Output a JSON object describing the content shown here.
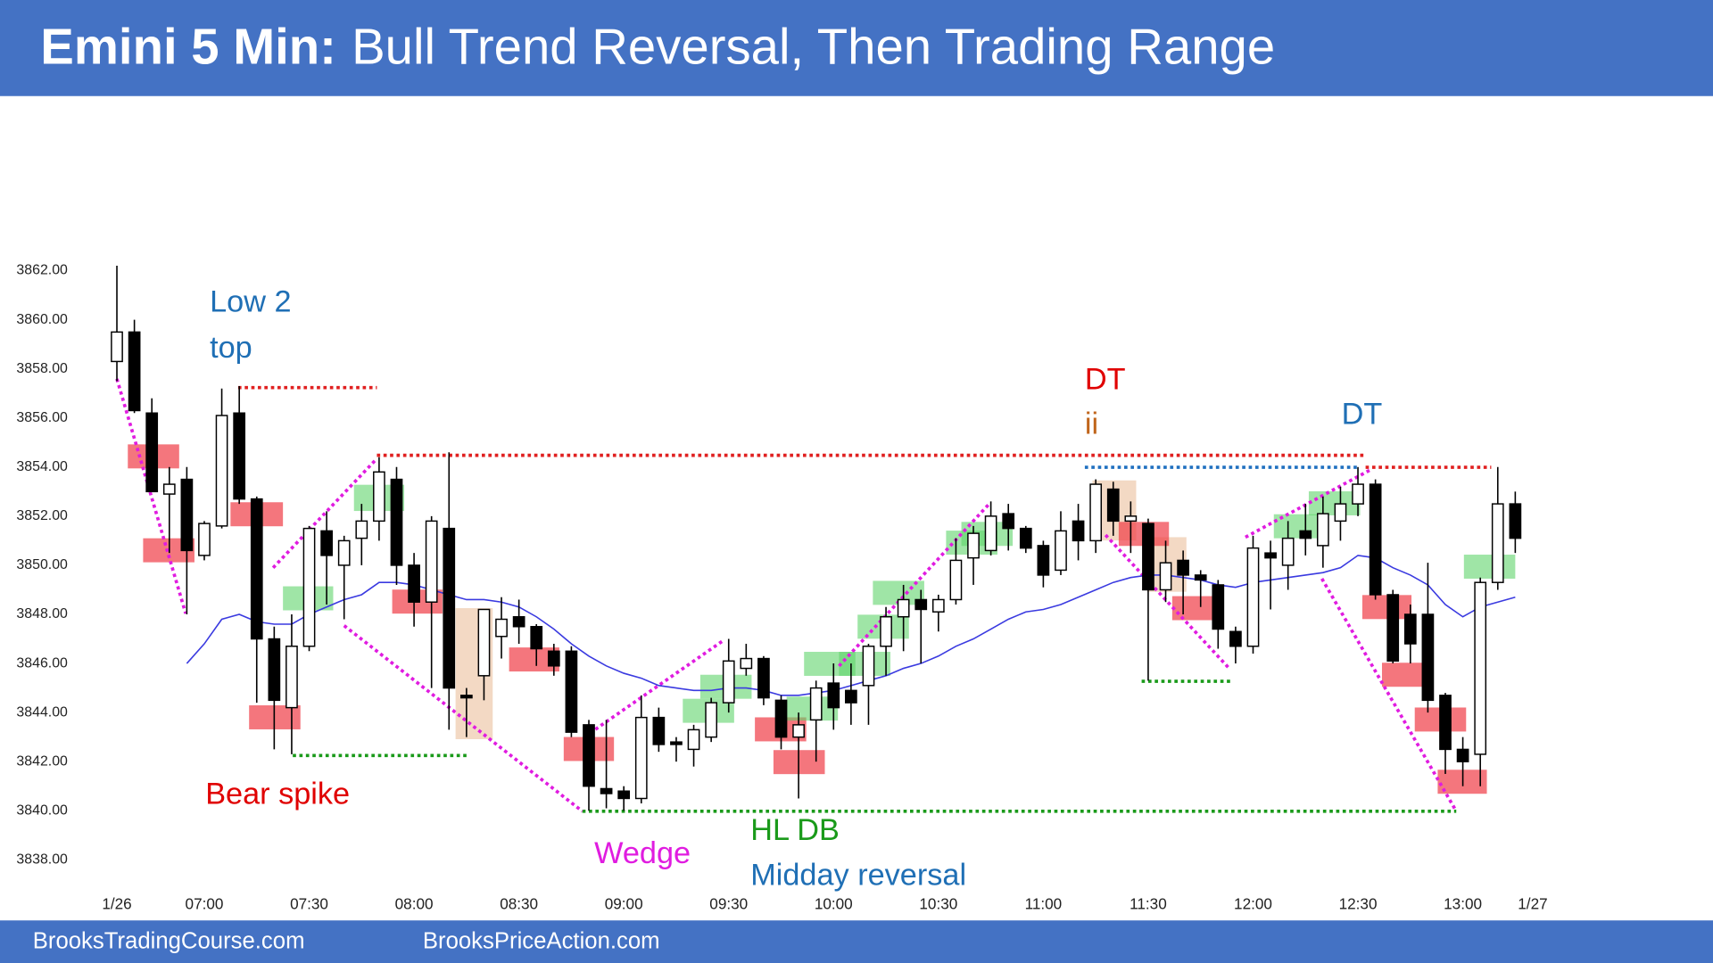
{
  "chart_data": {
    "type": "candlestick",
    "title_bold": "Emini 5 Min:",
    "title": "Bull Trend Reversal, Then Trading Range",
    "footer_left": "BrooksTradingCourse.com",
    "footer_right": "BrooksPriceAction.com",
    "annotations": {
      "low2_line1": "Low 2",
      "low2_line2": "top",
      "bear_spike": "Bear spike",
      "wedge": "Wedge",
      "hl_db": "HL DB",
      "midday": "Midday reversal",
      "dt1": "DT",
      "ii": "ii",
      "dt2": "DT"
    },
    "categories": [
      "1/26",
      null,
      null,
      null,
      null,
      "07:00",
      null,
      null,
      null,
      null,
      null,
      "07:30",
      null,
      null,
      null,
      null,
      null,
      "08:00",
      null,
      null,
      null,
      null,
      null,
      "08:30",
      null,
      null,
      null,
      null,
      null,
      "09:00",
      null,
      null,
      null,
      null,
      null,
      "09:30",
      null,
      null,
      null,
      null,
      null,
      "10:00",
      null,
      null,
      null,
      null,
      null,
      "10:30",
      null,
      null,
      null,
      null,
      null,
      "11:00",
      null,
      null,
      null,
      null,
      null,
      "11:30",
      null,
      null,
      null,
      null,
      null,
      "12:00",
      null,
      null,
      null,
      null,
      null,
      "12:30",
      null,
      null,
      null,
      null,
      null,
      "13:00",
      null,
      null,
      null,
      "1/27"
    ],
    "open": [
      3858.3,
      3859.5,
      3856.2,
      3852.9,
      3853.5,
      3850.4,
      3851.6,
      3856.2,
      3852.7,
      3847,
      3844.2,
      3846.7,
      3851.4,
      3850,
      3851.1,
      3851.8,
      3853.5,
      3850,
      3848.5,
      3851.5,
      3844.7,
      3845.5,
      3847.1,
      3847.9,
      3847.5,
      3846.5,
      3846.5,
      3843.5,
      3840.9,
      3840.8,
      3840.5,
      3843.8,
      3842.8,
      3842.5,
      3843,
      3844.4,
      3845.8,
      3846.2,
      3844.5,
      3843,
      3843.7,
      3845.2,
      3844.9,
      3845.1,
      3846.7,
      3847.9,
      3848.6,
      3848.1,
      3848.6,
      3850.3,
      3850.6,
      3852.1,
      3851.5,
      3850.8,
      3849.8,
      3851.8,
      3851,
      3853.1,
      3851.8,
      3851.7,
      3849,
      3850.2,
      3849.6,
      3849.2,
      3847.3,
      3846.7,
      3850.5,
      3850,
      3851.4,
      3850.8,
      3851.8,
      3852.5,
      3853.3,
      3848.8,
      3848,
      3848,
      3844.7,
      3842.5,
      3842.3,
      3849.3,
      3852.5,
      null
    ],
    "high": [
      3862.2,
      3860,
      3856.8,
      3854,
      3854,
      3851.8,
      3857.2,
      3857.3,
      3852.8,
      3847.5,
      3848,
      3851.6,
      3852.2,
      3851.2,
      3852.5,
      3854.4,
      3854,
      3850.5,
      3852,
      3854.6,
      3845,
      3848.2,
      3848.7,
      3848.6,
      3847.6,
      3846.8,
      3846.7,
      3843.7,
      3843.7,
      3841,
      3844.7,
      3844.2,
      3843,
      3843.5,
      3844.6,
      3847,
      3846.8,
      3846.3,
      3844.7,
      3844,
      3845.3,
      3846,
      3846,
      3846.8,
      3848.3,
      3849.2,
      3849,
      3848.8,
      3851.1,
      3851.6,
      3852.6,
      3852.5,
      3851.6,
      3851,
      3852.2,
      3852.5,
      3853.5,
      3853.4,
      3852.6,
      3851.9,
      3851,
      3850.6,
      3849.8,
      3849.4,
      3847.5,
      3851.2,
      3851,
      3851.8,
      3852.5,
      3852.8,
      3853.2,
      3854,
      3853.5,
      3849,
      3848.4,
      3850.1,
      3844.8,
      3843,
      3849.5,
      3854,
      3853,
      null
    ],
    "low": [
      3857.5,
      3856.2,
      3853,
      3850.5,
      3848,
      3850.2,
      3851.5,
      3852.5,
      3844.4,
      3842.5,
      3842.3,
      3846.5,
      3848.4,
      3847.8,
      3850,
      3851,
      3849.2,
      3847.5,
      3845,
      3843.3,
      3843,
      3844.5,
      3846.2,
      3846.8,
      3845.9,
      3845.5,
      3843,
      3840,
      3840.1,
      3840,
      3840.3,
      3842.4,
      3842,
      3841.8,
      3842.8,
      3844,
      3845.5,
      3844.3,
      3842.5,
      3840.5,
      3842,
      3843.3,
      3843.5,
      3843.5,
      3845.5,
      3846.5,
      3846,
      3847.3,
      3848.4,
      3849.2,
      3850.4,
      3850.6,
      3850.5,
      3849.1,
      3849.6,
      3850.2,
      3850.5,
      3851.2,
      3850.5,
      3845.3,
      3848.5,
      3848,
      3848.3,
      3846.6,
      3846,
      3846.4,
      3848.2,
      3849,
      3850.4,
      3849.9,
      3851,
      3852,
      3848.6,
      3846,
      3846,
      3844,
      3841.5,
      3841,
      3841,
      3849,
      3850.5,
      null
    ],
    "close": [
      3859.5,
      3856.3,
      3853,
      3853.3,
      3850.6,
      3851.7,
      3856.1,
      3852.7,
      3847,
      3844.5,
      3846.7,
      3851.5,
      3850.4,
      3851,
      3851.8,
      3853.8,
      3850,
      3848.5,
      3851.8,
      3845,
      3844.6,
      3848.2,
      3847.8,
      3847.5,
      3846.6,
      3845.9,
      3843.2,
      3841,
      3840.7,
      3840.5,
      3843.8,
      3842.7,
      3842.7,
      3843.3,
      3844.4,
      3846.1,
      3846.2,
      3844.6,
      3843,
      3843.5,
      3845,
      3844.2,
      3844.4,
      3846.7,
      3847.9,
      3848.6,
      3848.2,
      3848.6,
      3850.2,
      3851.3,
      3852,
      3851.5,
      3850.7,
      3849.6,
      3851.4,
      3851,
      3853.3,
      3851.8,
      3852,
      3849,
      3850.1,
      3849.6,
      3849.4,
      3847.4,
      3846.7,
      3850.7,
      3850.3,
      3851.1,
      3851.1,
      3852.1,
      3852.5,
      3853.3,
      3848.8,
      3846.1,
      3846.8,
      3844.5,
      3842.5,
      3842,
      3849.3,
      3852.5,
      3851.1,
      null
    ],
    "up_color": "#ffffff",
    "down_color": "#000000",
    "moving_average": {
      "color": "#3a3ae0",
      "values": [
        null,
        null,
        null,
        null,
        3846.0,
        3846.8,
        3847.8,
        3848.0,
        3847.7,
        3847.6,
        3847.6,
        3848.0,
        3848.3,
        3848.6,
        3848.8,
        3849.3,
        3849.3,
        3849.2,
        3849.0,
        3848.8,
        3848.6,
        3848.6,
        3848.5,
        3848.3,
        3847.9,
        3847.4,
        3846.8,
        3846.3,
        3845.9,
        3845.6,
        3845.4,
        3845.1,
        3845.0,
        3844.9,
        3844.9,
        3845.0,
        3845.0,
        3844.9,
        3844.7,
        3844.7,
        3844.8,
        3844.9,
        3845.1,
        3845.3,
        3845.5,
        3845.8,
        3846.0,
        3846.3,
        3846.7,
        3847.0,
        3847.4,
        3847.8,
        3848.1,
        3848.2,
        3848.4,
        3848.7,
        3849.0,
        3849.3,
        3849.5,
        3849.6,
        3849.6,
        3849.5,
        3849.4,
        3849.2,
        3849.1,
        3849.3,
        3849.4,
        3849.5,
        3849.6,
        3849.7,
        3849.9,
        3850.4,
        3850.3,
        3849.9,
        3849.6,
        3849.2,
        3848.4,
        3847.9,
        3848.3,
        3848.5,
        3848.7,
        null
      ]
    },
    "ylim": [
      3837,
      3868.8
    ],
    "yticks": [
      {
        "value": 3838,
        "label": "3838.00"
      },
      {
        "value": 3840,
        "label": "3840.00"
      },
      {
        "value": 3842,
        "label": "3842.00"
      },
      {
        "value": 3844,
        "label": "3844.00"
      },
      {
        "value": 3846,
        "label": "3846.00"
      },
      {
        "value": 3848,
        "label": "3848.00"
      },
      {
        "value": 3850,
        "label": "3850.00"
      },
      {
        "value": 3852,
        "label": "3852.00"
      },
      {
        "value": 3854,
        "label": "3854.00"
      },
      {
        "value": 3856,
        "label": "3856.00"
      },
      {
        "value": 3858,
        "label": "3858.00"
      },
      {
        "value": 3860,
        "label": "3860.00"
      },
      {
        "value": 3862,
        "label": "3862.00"
      }
    ],
    "grid": false
  }
}
